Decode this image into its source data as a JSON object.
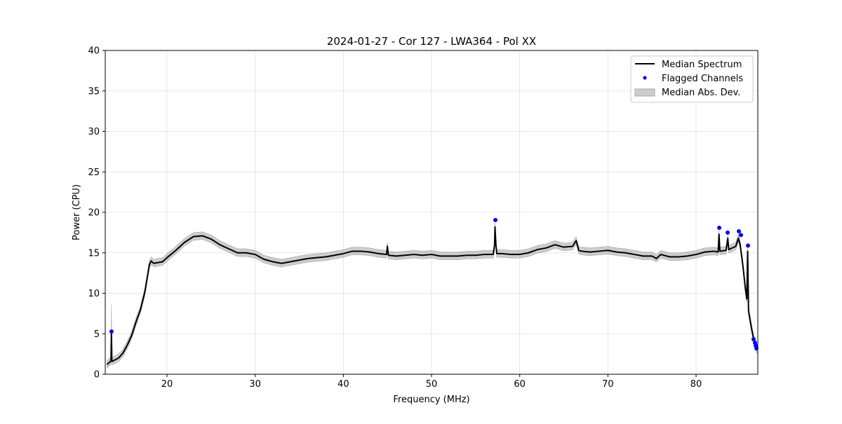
{
  "chart_data": {
    "type": "line",
    "title": "2024-01-27 - Cor 127 - LWA364 - Pol XX",
    "xlabel": "Frequency (MHz)",
    "ylabel": "Power (CPU)",
    "xlim": [
      13,
      87
    ],
    "ylim": [
      0,
      40
    ],
    "xticks": [
      20,
      30,
      40,
      50,
      60,
      70,
      80
    ],
    "yticks": [
      0,
      5,
      10,
      15,
      20,
      25,
      30,
      35,
      40
    ],
    "grid": true,
    "legend_position": "top-right",
    "legend": [
      "Median Spectrum",
      "Flagged Channels",
      "Median Abs. Dev."
    ],
    "colors": {
      "median": "#000000",
      "flagged": "#0000ff",
      "mad": "#bbbbbb"
    },
    "median_spectrum": {
      "x": [
        13.2,
        13.5,
        13.65,
        13.7,
        13.75,
        13.8,
        14.5,
        15,
        15.5,
        16,
        16.5,
        17,
        17.5,
        18,
        18.2,
        18.5,
        19,
        19.5,
        20,
        21,
        22,
        23,
        24,
        25,
        26,
        27,
        28,
        29,
        30,
        31,
        32,
        33,
        34,
        35,
        36,
        37,
        38,
        39,
        40,
        41,
        42,
        43,
        44,
        44.9,
        45,
        45.1,
        46,
        47,
        48,
        49,
        50,
        51,
        52,
        53,
        54,
        55,
        56,
        57,
        57.15,
        57.2,
        57.3,
        57.4,
        58,
        59,
        60,
        61,
        62,
        63,
        64,
        65,
        66,
        66.4,
        66.7,
        67,
        68,
        69,
        70,
        71,
        72,
        73,
        74,
        75,
        75.5,
        76,
        77,
        78,
        79,
        80,
        81,
        82,
        82.5,
        82.6,
        82.7,
        83.4,
        83.6,
        83.7,
        84.5,
        84.8,
        85.0,
        85.3,
        85.6,
        85.75,
        85.85,
        85.95,
        86.3,
        86.6,
        86.9
      ],
      "y": [
        1.2,
        1.5,
        1.6,
        5.2,
        1.7,
        1.6,
        2.0,
        2.6,
        3.6,
        4.8,
        6.5,
        8.0,
        10.2,
        13.5,
        14.0,
        13.7,
        13.8,
        13.9,
        14.4,
        15.3,
        16.3,
        17.0,
        17.1,
        16.7,
        16.0,
        15.5,
        15.0,
        15.0,
        14.8,
        14.2,
        13.9,
        13.7,
        13.9,
        14.1,
        14.3,
        14.4,
        14.5,
        14.7,
        14.9,
        15.2,
        15.2,
        15.1,
        14.9,
        14.8,
        15.8,
        14.7,
        14.6,
        14.7,
        14.8,
        14.7,
        14.8,
        14.6,
        14.6,
        14.6,
        14.7,
        14.7,
        14.8,
        14.8,
        16.0,
        18.2,
        16.0,
        14.9,
        14.9,
        14.8,
        14.8,
        15.0,
        15.4,
        15.6,
        16.0,
        15.7,
        15.8,
        16.5,
        15.3,
        15.2,
        15.1,
        15.2,
        15.3,
        15.1,
        15.0,
        14.8,
        14.6,
        14.6,
        14.3,
        14.8,
        14.5,
        14.5,
        14.6,
        14.8,
        15.1,
        15.2,
        15.1,
        17.3,
        15.2,
        15.3,
        16.8,
        15.4,
        15.8,
        16.8,
        16.0,
        13.5,
        10.5,
        9.3,
        15.2,
        7.8,
        5.6,
        4.0,
        3.0
      ],
      "mad": 0.5,
      "mad_overrides": {
        "13.7": 3.4
      }
    },
    "flagged_channels": {
      "x": [
        13.71,
        57.24,
        82.63,
        83.58,
        84.85,
        85.09,
        85.89,
        86.52,
        86.68,
        86.76,
        86.84
      ],
      "y": [
        5.28,
        19.05,
        18.1,
        17.5,
        17.66,
        17.2,
        15.9,
        4.33,
        3.9,
        3.55,
        3.2
      ]
    }
  }
}
